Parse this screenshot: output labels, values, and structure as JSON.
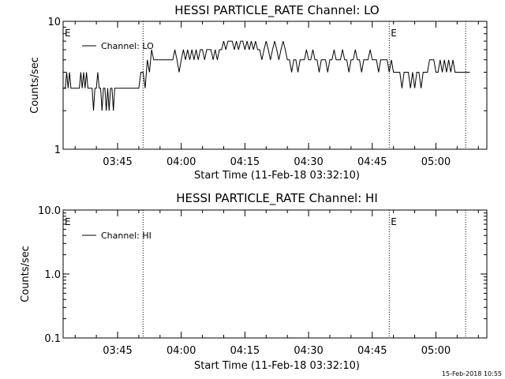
{
  "footer_date": "15-Feb-2018 10:55",
  "chart_data": [
    {
      "type": "line",
      "title": "HESSI PARTICLE_RATE Channel: LO",
      "xlabel": "Start Time (11-Feb-18 03:32:10)",
      "ylabel": "Counts/sec",
      "x_ticks": [
        "03:45",
        "04:00",
        "04:15",
        "04:30",
        "04:45",
        "05:00"
      ],
      "y_ticks": [
        "10",
        "1"
      ],
      "y_scale": "log",
      "ylim": [
        1,
        10
      ],
      "xlim": [
        "03:32:10",
        "05:12:00"
      ],
      "legend": {
        "entries": [
          "Channel: LO"
        ],
        "placement": "top-left"
      },
      "markers": [
        {
          "label": "E",
          "time": "03:32:10"
        },
        {
          "label": "",
          "time": "03:51:00"
        },
        {
          "label": "E",
          "time": "04:49:00"
        },
        {
          "label": "",
          "time": "05:07:00"
        }
      ],
      "series": [
        {
          "name": "Channel: LO",
          "points": [
            [
              "03:32:10",
              3
            ],
            [
              "03:32:40",
              3
            ],
            [
              "03:33:00",
              4
            ],
            [
              "03:33:20",
              3
            ],
            [
              "03:33:40",
              4
            ],
            [
              "03:34:00",
              3
            ],
            [
              "03:34:30",
              3
            ],
            [
              "03:35:00",
              3
            ],
            [
              "03:35:30",
              3
            ],
            [
              "03:36:00",
              3
            ],
            [
              "03:36:20",
              4
            ],
            [
              "03:36:40",
              3
            ],
            [
              "03:37:00",
              4
            ],
            [
              "03:37:20",
              3
            ],
            [
              "03:37:40",
              4
            ],
            [
              "03:38:00",
              3
            ],
            [
              "03:38:30",
              3
            ],
            [
              "03:39:00",
              3
            ],
            [
              "03:39:20",
              2
            ],
            [
              "03:39:40",
              3
            ],
            [
              "03:40:00",
              3
            ],
            [
              "03:40:20",
              4
            ],
            [
              "03:40:40",
              3
            ],
            [
              "03:41:00",
              3
            ],
            [
              "03:41:20",
              2
            ],
            [
              "03:41:40",
              3
            ],
            [
              "03:42:00",
              3
            ],
            [
              "03:42:20",
              2
            ],
            [
              "03:42:40",
              3
            ],
            [
              "03:43:00",
              2
            ],
            [
              "03:43:20",
              3
            ],
            [
              "03:43:40",
              3
            ],
            [
              "03:44:00",
              2
            ],
            [
              "03:44:20",
              3
            ],
            [
              "03:45:00",
              3
            ],
            [
              "03:46:00",
              3
            ],
            [
              "03:47:00",
              3
            ],
            [
              "03:48:00",
              3
            ],
            [
              "03:49:00",
              3
            ],
            [
              "03:50:00",
              3
            ],
            [
              "03:50:30",
              4
            ],
            [
              "03:51:00",
              4
            ],
            [
              "03:51:30",
              3
            ],
            [
              "03:52:00",
              5
            ],
            [
              "03:52:30",
              4
            ],
            [
              "03:53:00",
              6
            ],
            [
              "03:53:30",
              5
            ],
            [
              "03:54:00",
              5
            ],
            [
              "03:54:30",
              5
            ],
            [
              "03:55:00",
              5
            ],
            [
              "03:56:00",
              5
            ],
            [
              "03:57:00",
              5
            ],
            [
              "03:58:00",
              5
            ],
            [
              "03:58:30",
              6
            ],
            [
              "03:59:00",
              5
            ],
            [
              "03:59:30",
              4
            ],
            [
              "04:00:00",
              5
            ],
            [
              "04:00:30",
              6
            ],
            [
              "04:01:00",
              5
            ],
            [
              "04:01:30",
              6
            ],
            [
              "04:02:00",
              5
            ],
            [
              "04:02:30",
              6
            ],
            [
              "04:03:00",
              5
            ],
            [
              "04:03:30",
              6
            ],
            [
              "04:04:00",
              5
            ],
            [
              "04:04:30",
              6
            ],
            [
              "04:05:00",
              6
            ],
            [
              "04:05:30",
              5
            ],
            [
              "04:06:00",
              6
            ],
            [
              "04:06:30",
              6
            ],
            [
              "04:07:00",
              6
            ],
            [
              "04:07:30",
              5
            ],
            [
              "04:08:00",
              6
            ],
            [
              "04:08:30",
              5
            ],
            [
              "04:09:00",
              6
            ],
            [
              "04:09:30",
              6
            ],
            [
              "04:10:00",
              7
            ],
            [
              "04:10:30",
              6
            ],
            [
              "04:11:00",
              7
            ],
            [
              "04:11:30",
              7
            ],
            [
              "04:12:00",
              7
            ],
            [
              "04:12:30",
              6
            ],
            [
              "04:13:00",
              7
            ],
            [
              "04:13:30",
              6
            ],
            [
              "04:14:00",
              7
            ],
            [
              "04:14:30",
              7
            ],
            [
              "04:15:00",
              6
            ],
            [
              "04:15:30",
              7
            ],
            [
              "04:16:00",
              6
            ],
            [
              "04:16:30",
              7
            ],
            [
              "04:17:00",
              6
            ],
            [
              "04:17:30",
              7
            ],
            [
              "04:18:00",
              6
            ],
            [
              "04:18:30",
              6
            ],
            [
              "04:19:00",
              5
            ],
            [
              "04:19:30",
              6
            ],
            [
              "04:20:00",
              7
            ],
            [
              "04:20:30",
              6
            ],
            [
              "04:21:00",
              5
            ],
            [
              "04:21:30",
              6
            ],
            [
              "04:22:00",
              7
            ],
            [
              "04:22:30",
              6
            ],
            [
              "04:23:00",
              5
            ],
            [
              "04:23:30",
              6
            ],
            [
              "04:24:00",
              7
            ],
            [
              "04:24:30",
              6
            ],
            [
              "04:25:00",
              5
            ],
            [
              "04:25:30",
              5
            ],
            [
              "04:26:00",
              4
            ],
            [
              "04:26:30",
              5
            ],
            [
              "04:27:00",
              5
            ],
            [
              "04:27:30",
              4
            ],
            [
              "04:28:00",
              5
            ],
            [
              "04:28:30",
              5
            ],
            [
              "04:29:00",
              5
            ],
            [
              "04:29:30",
              6
            ],
            [
              "04:30:00",
              5
            ],
            [
              "04:30:30",
              5
            ],
            [
              "04:31:00",
              6
            ],
            [
              "04:31:30",
              5
            ],
            [
              "04:32:00",
              5
            ],
            [
              "04:32:30",
              4
            ],
            [
              "04:33:00",
              5
            ],
            [
              "04:33:30",
              5
            ],
            [
              "04:34:00",
              5
            ],
            [
              "04:34:30",
              4
            ],
            [
              "04:35:00",
              5
            ],
            [
              "04:35:30",
              5
            ],
            [
              "04:36:00",
              6
            ],
            [
              "04:36:30",
              5
            ],
            [
              "04:37:00",
              5
            ],
            [
              "04:37:30",
              5
            ],
            [
              "04:38:00",
              6
            ],
            [
              "04:38:30",
              5
            ],
            [
              "04:39:00",
              5
            ],
            [
              "04:39:30",
              4
            ],
            [
              "04:40:00",
              5
            ],
            [
              "04:40:30",
              5
            ],
            [
              "04:41:00",
              6
            ],
            [
              "04:41:30",
              5
            ],
            [
              "04:42:00",
              5
            ],
            [
              "04:42:30",
              4
            ],
            [
              "04:43:00",
              5
            ],
            [
              "04:43:30",
              5
            ],
            [
              "04:44:00",
              5
            ],
            [
              "04:44:30",
              6
            ],
            [
              "04:45:00",
              5
            ],
            [
              "04:45:30",
              5
            ],
            [
              "04:46:00",
              5
            ],
            [
              "04:46:30",
              4
            ],
            [
              "04:47:00",
              5
            ],
            [
              "04:47:30",
              5
            ],
            [
              "04:48:00",
              5
            ],
            [
              "04:48:30",
              5
            ],
            [
              "04:49:00",
              4
            ],
            [
              "04:49:30",
              5
            ],
            [
              "04:50:00",
              4
            ],
            [
              "04:50:30",
              4
            ],
            [
              "04:51:00",
              4
            ],
            [
              "04:51:30",
              4
            ],
            [
              "04:52:00",
              3
            ],
            [
              "04:52:30",
              4
            ],
            [
              "04:53:00",
              4
            ],
            [
              "04:53:30",
              4
            ],
            [
              "04:54:00",
              3
            ],
            [
              "04:54:30",
              4
            ],
            [
              "04:55:00",
              3
            ],
            [
              "04:55:30",
              4
            ],
            [
              "04:56:00",
              4
            ],
            [
              "04:56:30",
              3
            ],
            [
              "04:57:00",
              4
            ],
            [
              "04:57:30",
              4
            ],
            [
              "04:58:00",
              4
            ],
            [
              "04:58:30",
              5
            ],
            [
              "04:59:00",
              5
            ],
            [
              "04:59:30",
              5
            ],
            [
              "05:00:00",
              4
            ],
            [
              "05:00:30",
              4
            ],
            [
              "05:01:00",
              5
            ],
            [
              "05:01:30",
              4
            ],
            [
              "05:02:00",
              5
            ],
            [
              "05:02:30",
              4
            ],
            [
              "05:03:00",
              5
            ],
            [
              "05:03:30",
              4
            ],
            [
              "05:04:00",
              5
            ],
            [
              "05:04:30",
              4
            ],
            [
              "05:05:00",
              4
            ],
            [
              "05:06:00",
              4
            ],
            [
              "05:07:00",
              4
            ],
            [
              "05:08:00",
              4
            ]
          ]
        }
      ]
    },
    {
      "type": "line",
      "title": "HESSI PARTICLE_RATE Channel: HI",
      "xlabel": "Start Time (11-Feb-18 03:32:10)",
      "ylabel": "Counts/sec",
      "x_ticks": [
        "03:45",
        "04:00",
        "04:15",
        "04:30",
        "04:45",
        "05:00"
      ],
      "y_ticks": [
        "10.0",
        "1.0",
        "0.1"
      ],
      "y_scale": "log",
      "ylim": [
        0.1,
        10
      ],
      "xlim": [
        "03:32:10",
        "05:12:00"
      ],
      "legend": {
        "entries": [
          "Channel: HI"
        ],
        "placement": "top-left"
      },
      "markers": [
        {
          "label": "E",
          "time": "03:32:10"
        },
        {
          "label": "",
          "time": "03:51:00"
        },
        {
          "label": "E",
          "time": "04:49:00"
        },
        {
          "label": "",
          "time": "05:07:00"
        }
      ],
      "series": [
        {
          "name": "Channel: HI",
          "points": []
        }
      ]
    }
  ]
}
